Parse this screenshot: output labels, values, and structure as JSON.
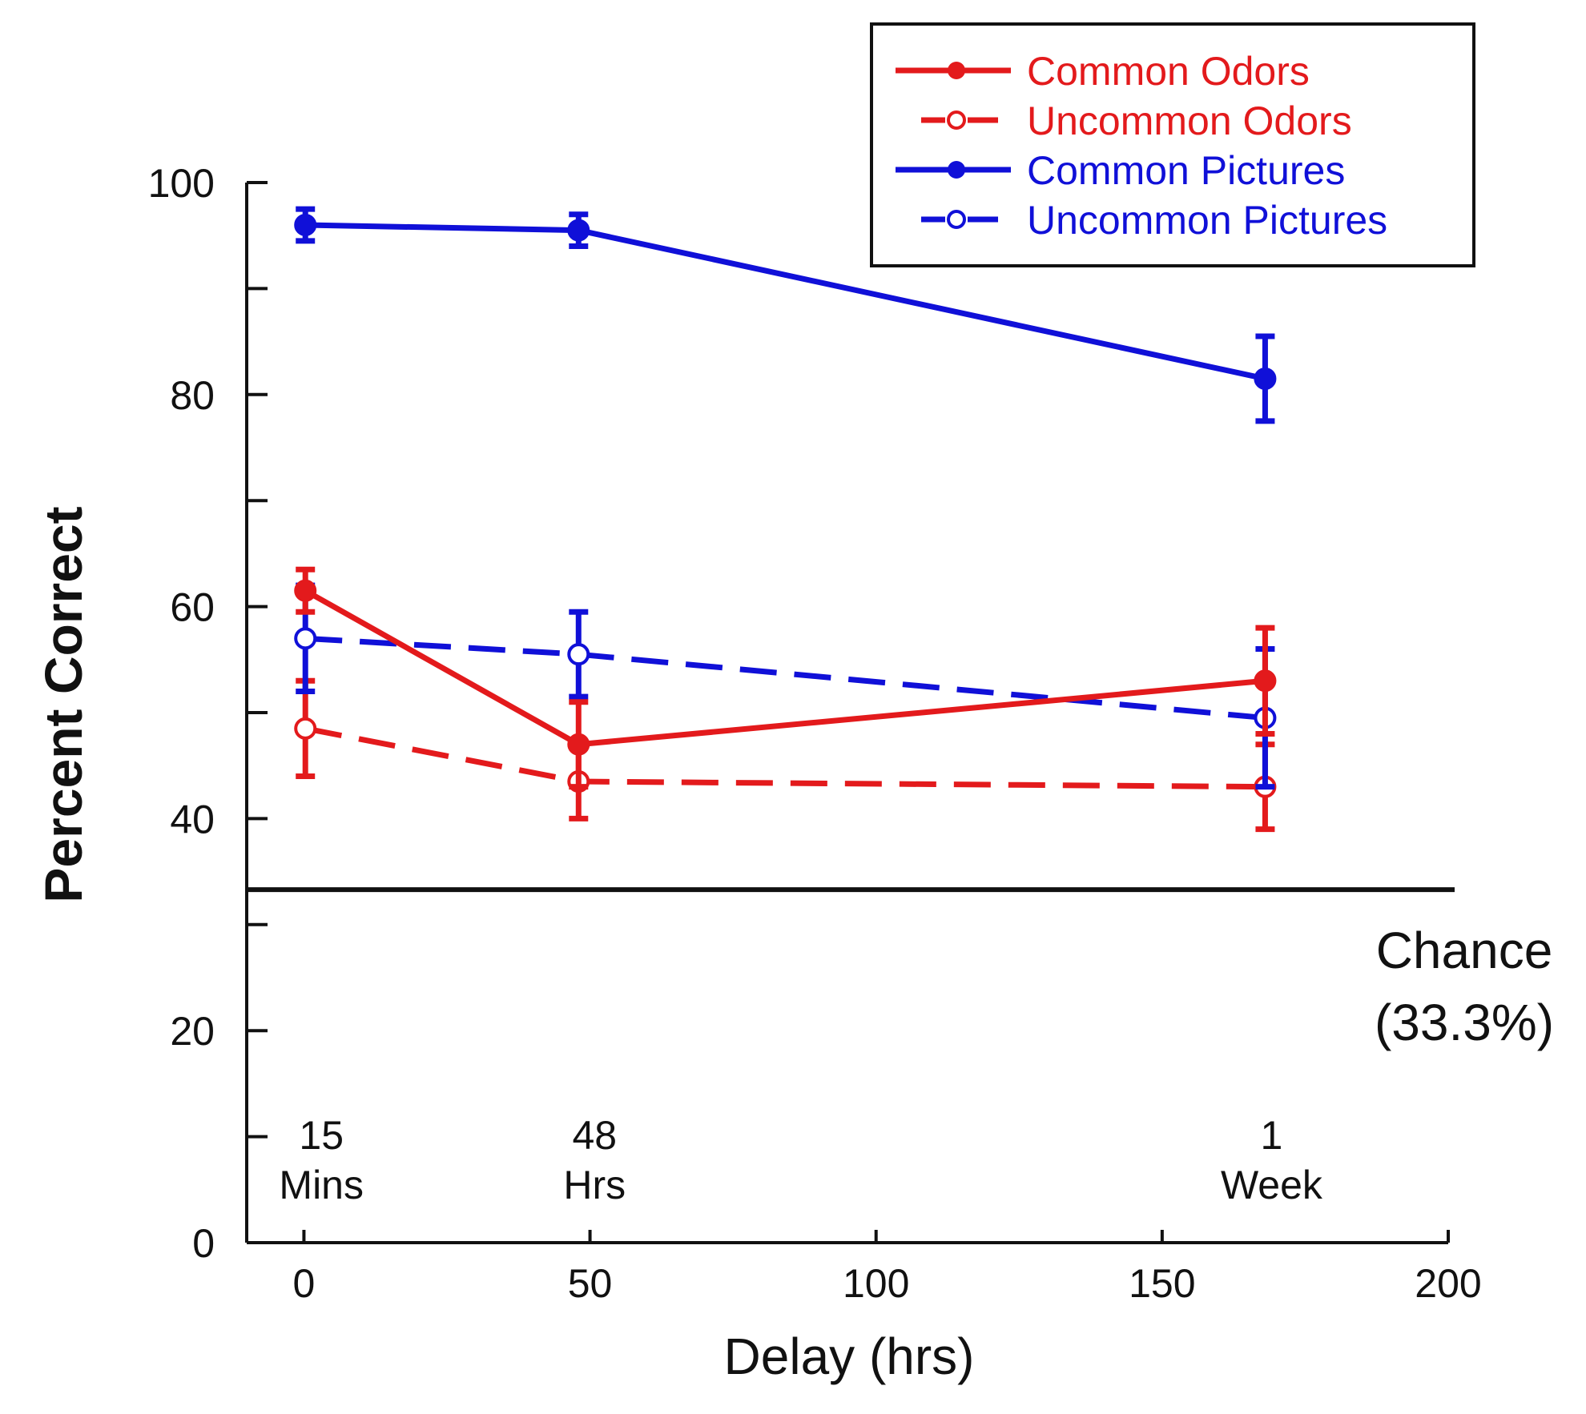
{
  "chart_data": {
    "type": "line",
    "xlabel": "Delay (hrs)",
    "ylabel": "Percent Correct",
    "xlim": [
      -10,
      200
    ],
    "ylim": [
      0,
      100
    ],
    "x_ticks": [
      0,
      50,
      100,
      150,
      200
    ],
    "y_ticks_labeled": [
      0,
      20,
      40,
      60,
      80,
      100
    ],
    "y_ticks_minor": [
      10,
      30,
      50,
      70,
      90
    ],
    "grid": false,
    "legend_position": "top-right",
    "x_annotations": [
      {
        "x": 0.25,
        "line1": "15",
        "line2": "Mins"
      },
      {
        "x": 48,
        "line1": "48",
        "line2": "Hrs"
      },
      {
        "x": 168,
        "line1": "1",
        "line2": "Week"
      }
    ],
    "reference_line": {
      "y": 33.3,
      "label_line1": "Chance",
      "label_line2": "(33.3%)"
    },
    "series": [
      {
        "name": "Common Odors",
        "color": "#e31a1c",
        "style": "solid",
        "marker": "filled",
        "x": [
          0.25,
          48,
          168
        ],
        "y": [
          61.5,
          47,
          53
        ],
        "error": [
          2,
          4,
          5
        ]
      },
      {
        "name": "Uncommon Odors",
        "color": "#e31a1c",
        "style": "dashed",
        "marker": "open",
        "x": [
          0.25,
          48,
          168
        ],
        "y": [
          48.5,
          43.5,
          43
        ],
        "error": [
          4.5,
          3.5,
          4
        ]
      },
      {
        "name": "Common Pictures",
        "color": "#1010d8",
        "style": "solid",
        "marker": "filled",
        "x": [
          0.25,
          48,
          168
        ],
        "y": [
          96,
          95.5,
          81.5
        ],
        "error": [
          1.5,
          1.5,
          4
        ]
      },
      {
        "name": "Uncommon Pictures",
        "color": "#1010d8",
        "style": "dashed",
        "marker": "open",
        "x": [
          0.25,
          48,
          168
        ],
        "y": [
          57,
          55.5,
          49.5
        ],
        "error": [
          5,
          4,
          6.5
        ]
      }
    ]
  }
}
